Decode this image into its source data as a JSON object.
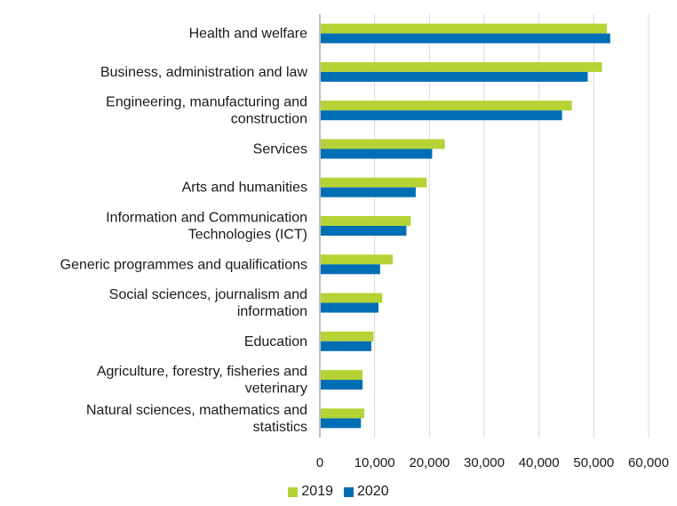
{
  "chart_data": {
    "type": "bar",
    "orientation": "horizontal",
    "categories": [
      [
        "Health and welfare"
      ],
      [
        "Business, administration and law"
      ],
      [
        "Engineering, manufacturing and",
        "construction"
      ],
      [
        "Services"
      ],
      [
        "Arts and humanities"
      ],
      [
        "Information and Communication",
        "Technologies (ICT)"
      ],
      [
        "Generic programmes and qualifications"
      ],
      [
        "Social sciences, journalism and",
        "information"
      ],
      [
        "Education"
      ],
      [
        "Agriculture, forestry, fisheries and",
        "veterinary"
      ],
      [
        "Natural sciences, mathematics and",
        "statistics"
      ]
    ],
    "series": [
      {
        "name": "2019",
        "color": "#b5d334",
        "values": [
          52400,
          51500,
          46000,
          22800,
          19500,
          16600,
          13300,
          11400,
          9800,
          7800,
          8100
        ]
      },
      {
        "name": "2020",
        "color": "#006eb4",
        "values": [
          53000,
          48900,
          44200,
          20500,
          17500,
          15800,
          11000,
          10700,
          9400,
          7800,
          7500
        ]
      }
    ],
    "xlim": [
      0,
      60000
    ],
    "xticks": [
      "0",
      "10,000",
      "20,000",
      "30,000",
      "40,000",
      "50,000",
      "60,000"
    ],
    "xtick_values": [
      0,
      10000,
      20000,
      30000,
      40000,
      50000,
      60000
    ],
    "grid": true,
    "legend_position": "bottom",
    "title": "",
    "xlabel": "",
    "ylabel": ""
  }
}
